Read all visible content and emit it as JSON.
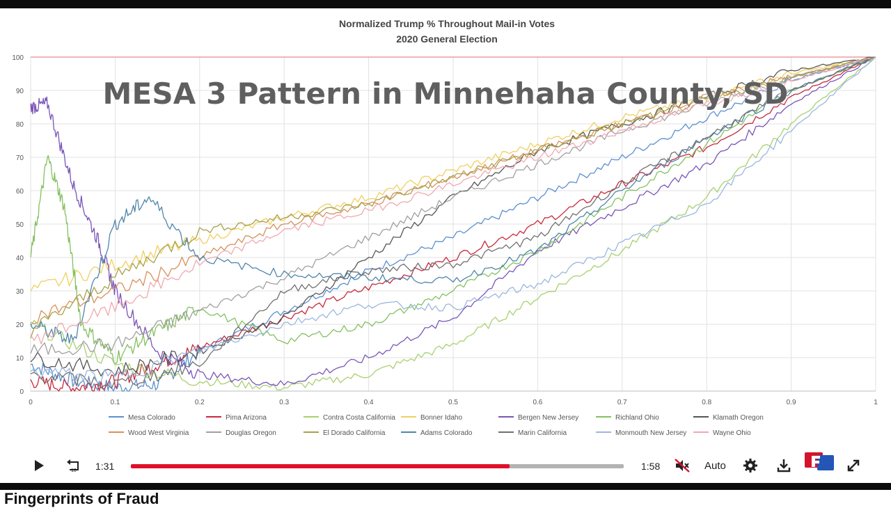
{
  "video": {
    "overlay_title": "MESA 3 Pattern in Minnehaha County, SD",
    "current_time": "1:31",
    "duration": "1:58",
    "progress": 0.768,
    "quality_label": "Auto",
    "below_text": "Fingerprints of Fraud"
  },
  "icons": {
    "play": "play-icon",
    "replay": "replay-10-icon",
    "mute": "muted-speaker-icon",
    "settings": "gear-icon",
    "download": "download-icon",
    "brand": "brand-logo-icon",
    "fullscreen": "fullscreen-icon"
  },
  "colors": {
    "progress_played": "#e0102a",
    "progress_track": "#b3b3b3",
    "top_line": "#e06a7a"
  },
  "chart_data": {
    "type": "line",
    "title": "Normalized Trump % Throughout Mail-in Votes",
    "subtitle": "2020 General Election",
    "xlabel": "",
    "ylabel": "",
    "xlim": [
      0,
      1
    ],
    "ylim": [
      0,
      100
    ],
    "x_ticks": [
      "0",
      "0.1",
      "0.2",
      "0.3",
      "0.4",
      "0.5",
      "0.6",
      "0.7",
      "0.8",
      "0.9",
      "1"
    ],
    "y_ticks": [
      "0",
      "10",
      "20",
      "30",
      "40",
      "50",
      "60",
      "70",
      "80",
      "90",
      "100"
    ],
    "grid": true,
    "legend_position": "bottom",
    "series": [
      {
        "name": "Mesa Colorado",
        "color": "#5b8fcf",
        "x": [
          0,
          0.05,
          0.1,
          0.15,
          0.2,
          0.3,
          0.4,
          0.5,
          0.6,
          0.7,
          0.8,
          0.9,
          1
        ],
        "y": [
          8,
          3,
          1,
          2,
          12,
          24,
          36,
          46,
          58,
          70,
          82,
          93,
          100
        ]
      },
      {
        "name": "Pima Arizona",
        "color": "#c8283c",
        "x": [
          0,
          0.05,
          0.1,
          0.15,
          0.2,
          0.3,
          0.4,
          0.5,
          0.6,
          0.7,
          0.8,
          0.9,
          1
        ],
        "y": [
          3,
          1,
          3,
          8,
          13,
          22,
          31,
          40,
          50,
          62,
          73,
          88,
          100
        ]
      },
      {
        "name": "Contra Costa California",
        "color": "#a8d070",
        "x": [
          0,
          0.1,
          0.2,
          0.3,
          0.4,
          0.5,
          0.6,
          0.7,
          0.8,
          0.9,
          1
        ],
        "y": [
          20,
          8,
          3,
          1,
          5,
          14,
          28,
          42,
          58,
          80,
          100
        ]
      },
      {
        "name": "Bonner Idaho",
        "color": "#f0cf60",
        "x": [
          0,
          0.1,
          0.2,
          0.3,
          0.4,
          0.5,
          0.6,
          0.7,
          0.8,
          0.9,
          1
        ],
        "y": [
          30,
          38,
          45,
          52,
          58,
          66,
          74,
          82,
          88,
          95,
          100
        ]
      },
      {
        "name": "Bergen New Jersey",
        "color": "#7a55b8",
        "x": [
          0,
          0.02,
          0.05,
          0.08,
          0.1,
          0.15,
          0.2,
          0.3,
          0.4,
          0.5,
          0.6,
          0.7,
          0.8,
          0.9,
          1
        ],
        "y": [
          85,
          86,
          62,
          45,
          30,
          12,
          5,
          2,
          10,
          22,
          42,
          55,
          68,
          86,
          100
        ]
      },
      {
        "name": "Richland Ohio",
        "color": "#84c060",
        "x": [
          0,
          0.02,
          0.04,
          0.06,
          0.1,
          0.15,
          0.2,
          0.3,
          0.4,
          0.5,
          0.6,
          0.7,
          0.8,
          0.9,
          1
        ],
        "y": [
          40,
          70,
          55,
          20,
          10,
          18,
          25,
          15,
          20,
          30,
          42,
          58,
          74,
          90,
          100
        ]
      },
      {
        "name": "Klamath Oregon",
        "color": "#555555",
        "x": [
          0,
          0.1,
          0.2,
          0.3,
          0.4,
          0.5,
          0.6,
          0.7,
          0.8,
          0.9,
          1
        ],
        "y": [
          10,
          6,
          12,
          22,
          40,
          58,
          72,
          80,
          88,
          96,
          100
        ]
      },
      {
        "name": "Wood West Virginia",
        "color": "#d8905a",
        "x": [
          0,
          0.1,
          0.2,
          0.3,
          0.4,
          0.5,
          0.6,
          0.7,
          0.8,
          0.9,
          1
        ],
        "y": [
          22,
          30,
          40,
          50,
          56,
          64,
          72,
          80,
          88,
          94,
          100
        ]
      },
      {
        "name": "Douglas Oregon",
        "color": "#a0a0a0",
        "x": [
          0,
          0.1,
          0.2,
          0.3,
          0.4,
          0.5,
          0.6,
          0.7,
          0.8,
          0.9,
          1
        ],
        "y": [
          12,
          14,
          24,
          34,
          46,
          58,
          68,
          78,
          86,
          94,
          100
        ]
      },
      {
        "name": "El Dorado California",
        "color": "#a9a24a",
        "x": [
          0,
          0.1,
          0.2,
          0.3,
          0.4,
          0.5,
          0.6,
          0.7,
          0.8,
          0.9,
          1
        ],
        "y": [
          18,
          34,
          48,
          52,
          56,
          64,
          72,
          80,
          87,
          94,
          100
        ]
      },
      {
        "name": "Adams Colorado",
        "color": "#4f86a8",
        "x": [
          0,
          0.05,
          0.1,
          0.14,
          0.2,
          0.3,
          0.4,
          0.5,
          0.6,
          0.7,
          0.8,
          0.9,
          1
        ],
        "y": [
          20,
          15,
          50,
          58,
          40,
          35,
          34,
          33,
          42,
          60,
          76,
          90,
          100
        ]
      },
      {
        "name": "Marin California",
        "color": "#707070",
        "x": [
          0,
          0.1,
          0.2,
          0.3,
          0.4,
          0.5,
          0.6,
          0.7,
          0.8,
          0.9,
          1
        ],
        "y": [
          5,
          2,
          8,
          30,
          36,
          38,
          46,
          62,
          76,
          90,
          100
        ]
      },
      {
        "name": "Monmouth New Jersey",
        "color": "#9bb7dc",
        "x": [
          0,
          0.1,
          0.2,
          0.3,
          0.4,
          0.5,
          0.6,
          0.7,
          0.8,
          0.9,
          1
        ],
        "y": [
          6,
          4,
          12,
          20,
          26,
          25,
          32,
          44,
          56,
          78,
          100
        ]
      },
      {
        "name": "Wayne Ohio",
        "color": "#f0a8b0",
        "x": [
          0,
          0.1,
          0.2,
          0.3,
          0.4,
          0.5,
          0.6,
          0.7,
          0.8,
          0.9,
          1
        ],
        "y": [
          15,
          25,
          38,
          48,
          54,
          62,
          70,
          78,
          86,
          93,
          100
        ]
      }
    ]
  }
}
